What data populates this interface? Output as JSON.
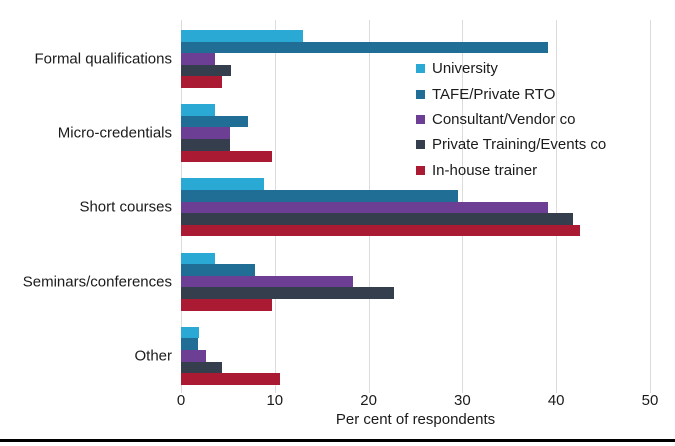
{
  "chart_data": {
    "type": "bar",
    "orientation": "horizontal",
    "title": "",
    "xlabel": "Per cent of respondents",
    "ylabel": "",
    "xlim": [
      0,
      50
    ],
    "xticks": [
      0,
      10,
      20,
      30,
      40,
      50
    ],
    "grid": "vertical-gridlines",
    "legend_position": "inside-upper-right",
    "categories": [
      "Formal qualifications",
      "Micro-credentials",
      "Short courses",
      "Seminars/conferences",
      "Other"
    ],
    "series": [
      {
        "name": "University",
        "color": "#29a9d3",
        "values": [
          13.0,
          3.6,
          8.8,
          3.6,
          1.9
        ]
      },
      {
        "name": "TAFE/Private RTO",
        "color": "#206e96",
        "values": [
          39.1,
          7.1,
          29.5,
          7.9,
          1.8
        ]
      },
      {
        "name": "Consultant/Vendor co",
        "color": "#6c3e94",
        "values": [
          3.6,
          5.2,
          39.1,
          18.3,
          2.7
        ]
      },
      {
        "name": "Private Training/Events co",
        "color": "#343e4d",
        "values": [
          5.3,
          5.2,
          41.8,
          22.7,
          4.4
        ]
      },
      {
        "name": "In-house trainer",
        "color": "#aa1b33",
        "values": [
          4.4,
          9.7,
          42.5,
          9.7,
          10.6
        ]
      }
    ]
  },
  "style": {
    "gridline_color": "#dcdcdc",
    "text_color": "#1b1b1b",
    "background": "#ffffff",
    "bottom_border_color": "#000000"
  }
}
